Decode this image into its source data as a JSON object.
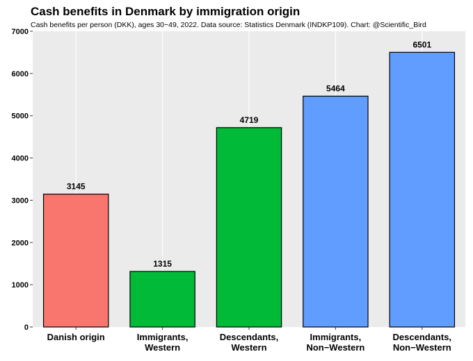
{
  "chart_data": {
    "type": "bar",
    "title": "Cash benefits in Denmark by immigration origin",
    "subtitle": "Cash benefits per person (DKK), ages 30−49, 2022. Data source: Statistics Denmark (INDKP109).  Chart: @Scientific_Bird",
    "categories": [
      [
        "Danish origin"
      ],
      [
        "Immigrants,",
        "Western"
      ],
      [
        "Descendants,",
        "Western"
      ],
      [
        "Immigrants,",
        "Non−Western"
      ],
      [
        "Descendants,",
        "Non−Western"
      ]
    ],
    "values": [
      3145,
      1315,
      4719,
      5464,
      6501
    ],
    "data_labels": [
      "3145",
      "1315",
      "4719",
      "5464",
      "6501"
    ],
    "colors": [
      "#F8766D",
      "#00BA38",
      "#00BA38",
      "#619CFF",
      "#619CFF"
    ],
    "ylim": [
      0,
      7000
    ],
    "yticks": [
      0,
      1000,
      2000,
      3000,
      4000,
      5000,
      6000,
      7000
    ],
    "xlabel": "",
    "ylabel": "",
    "grid": "vertical-major",
    "panel_color": "#EBEBEB",
    "legend": "none"
  }
}
